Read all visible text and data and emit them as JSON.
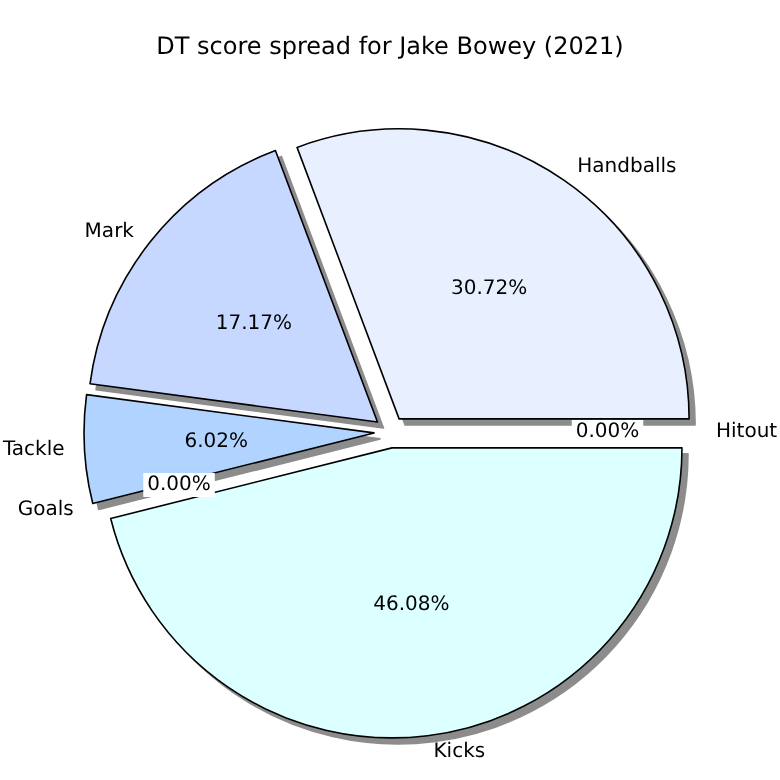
{
  "chart_data": {
    "type": "pie",
    "title": "DT score spread for Jake Bowey (2021)",
    "categories": [
      "Handballs",
      "Mark",
      "Tackle",
      "Goals",
      "Kicks",
      "Hitout"
    ],
    "values": [
      30.72,
      17.17,
      6.02,
      0.0,
      46.08,
      0.0
    ],
    "value_labels": [
      "30.72%",
      "17.17%",
      "6.02%",
      "0.00%",
      "46.08%",
      "0.00%"
    ],
    "colors": [
      "#e8f0ff",
      "#c6d8ff",
      "#b0d4ff",
      "#c0e0ff",
      "#dcffff",
      "#e0f0ff"
    ]
  }
}
